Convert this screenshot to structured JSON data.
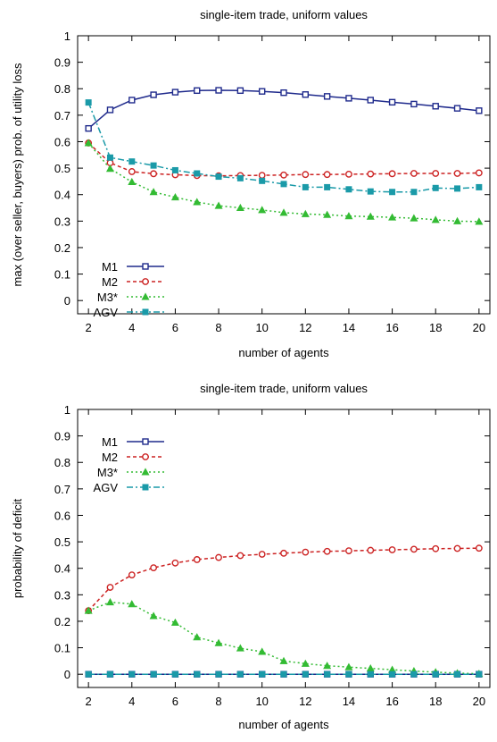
{
  "chart_data": [
    {
      "type": "line",
      "title": "single-item trade, uniform values",
      "xlabel": "number of agents",
      "ylabel": "max (over seller, buyers) prob. of utility loss",
      "xlim": [
        1.5,
        20.5
      ],
      "ylim": [
        -0.05,
        1.0
      ],
      "xticks": [
        2,
        4,
        6,
        8,
        10,
        12,
        14,
        16,
        18,
        20
      ],
      "yticks": [
        0,
        0.1,
        0.2,
        0.3,
        0.4,
        0.5,
        0.6,
        0.7,
        0.8,
        0.9,
        1
      ],
      "ytick_labels": [
        "0",
        "0.1",
        "0.2",
        "0.3",
        "0.4",
        "0.5",
        "0.6",
        "0.7",
        "0.8",
        "0.9",
        "1"
      ],
      "xtick_labels": [
        "2",
        "4",
        "6",
        "8",
        "10",
        "12",
        "14",
        "16",
        "18",
        "20"
      ],
      "grid": false,
      "legend_position": "lower-left",
      "x": [
        2,
        3,
        4,
        5,
        6,
        7,
        8,
        9,
        10,
        11,
        12,
        13,
        14,
        15,
        16,
        17,
        18,
        19,
        20
      ],
      "series": [
        {
          "name": "M1",
          "color": "#1f2a8c",
          "dash": "",
          "marker": "square-open",
          "values": [
            0.65,
            0.72,
            0.757,
            0.777,
            0.787,
            0.793,
            0.794,
            0.793,
            0.79,
            0.785,
            0.778,
            0.771,
            0.764,
            0.757,
            0.749,
            0.742,
            0.734,
            0.726,
            0.717
          ]
        },
        {
          "name": "M2",
          "color": "#cc2222",
          "dash": "4,3",
          "marker": "circle-open",
          "values": [
            0.595,
            0.52,
            0.487,
            0.479,
            0.475,
            0.472,
            0.471,
            0.472,
            0.473,
            0.474,
            0.476,
            0.476,
            0.477,
            0.478,
            0.479,
            0.48,
            0.48,
            0.48,
            0.482
          ]
        },
        {
          "name": "M3*",
          "color": "#33bb33",
          "dash": "2,3",
          "marker": "triangle",
          "values": [
            0.595,
            0.498,
            0.448,
            0.41,
            0.39,
            0.372,
            0.358,
            0.35,
            0.342,
            0.332,
            0.327,
            0.324,
            0.319,
            0.317,
            0.314,
            0.311,
            0.305,
            0.3,
            0.298
          ]
        },
        {
          "name": "AGV",
          "color": "#1a9aa8",
          "dash": "7,3,2,3",
          "marker": "square",
          "values": [
            0.748,
            0.54,
            0.525,
            0.51,
            0.492,
            0.48,
            0.468,
            0.462,
            0.452,
            0.44,
            0.428,
            0.428,
            0.42,
            0.412,
            0.41,
            0.41,
            0.425,
            0.423,
            0.428
          ]
        }
      ]
    },
    {
      "type": "line",
      "title": "single-item trade, uniform values",
      "xlabel": "number of agents",
      "ylabel": "probability of deficit",
      "xlim": [
        1.5,
        20.5
      ],
      "ylim": [
        -0.05,
        1.0
      ],
      "xticks": [
        2,
        4,
        6,
        8,
        10,
        12,
        14,
        16,
        18,
        20
      ],
      "yticks": [
        0,
        0.1,
        0.2,
        0.3,
        0.4,
        0.5,
        0.6,
        0.7,
        0.8,
        0.9,
        1
      ],
      "ytick_labels": [
        "0",
        "0.1",
        "0.2",
        "0.3",
        "0.4",
        "0.5",
        "0.6",
        "0.7",
        "0.8",
        "0.9",
        "1"
      ],
      "xtick_labels": [
        "2",
        "4",
        "6",
        "8",
        "10",
        "12",
        "14",
        "16",
        "18",
        "20"
      ],
      "grid": false,
      "legend_position": "top-left",
      "x": [
        2,
        3,
        4,
        5,
        6,
        7,
        8,
        9,
        10,
        11,
        12,
        13,
        14,
        15,
        16,
        17,
        18,
        19,
        20
      ],
      "series": [
        {
          "name": "M1",
          "color": "#1f2a8c",
          "dash": "",
          "marker": "square-open",
          "values": [
            0,
            0,
            0,
            0,
            0,
            0,
            0,
            0,
            0,
            0,
            0,
            0,
            0,
            0,
            0,
            0,
            0,
            0,
            0
          ]
        },
        {
          "name": "M2",
          "color": "#cc2222",
          "dash": "4,3",
          "marker": "circle-open",
          "values": [
            0.24,
            0.328,
            0.375,
            0.402,
            0.42,
            0.433,
            0.441,
            0.448,
            0.453,
            0.457,
            0.461,
            0.464,
            0.466,
            0.468,
            0.47,
            0.472,
            0.474,
            0.475,
            0.476
          ]
        },
        {
          "name": "M3*",
          "color": "#33bb33",
          "dash": "2,3",
          "marker": "triangle",
          "values": [
            0.24,
            0.272,
            0.265,
            0.22,
            0.195,
            0.14,
            0.118,
            0.098,
            0.085,
            0.05,
            0.04,
            0.032,
            0.027,
            0.022,
            0.017,
            0.012,
            0.008,
            0.004,
            0.002
          ]
        },
        {
          "name": "AGV",
          "color": "#1a9aa8",
          "dash": "7,3,2,3",
          "marker": "square",
          "values": [
            0,
            0,
            0,
            0,
            0,
            0,
            0,
            0,
            0,
            0,
            0,
            0,
            0,
            0,
            0,
            0,
            0,
            0,
            0
          ]
        }
      ]
    }
  ]
}
